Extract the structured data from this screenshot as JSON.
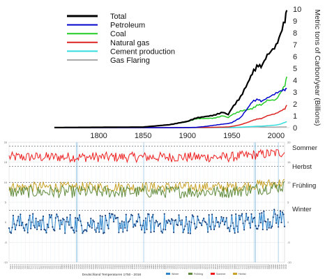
{
  "chart_data": [
    {
      "type": "line",
      "xlabel": "",
      "ylabel": "Metric tons of Carbon/year (Billions)",
      "xlim": [
        1750,
        2015
      ],
      "ylim": [
        0,
        10
      ],
      "x_ticks": [
        "1800",
        "1850",
        "1900",
        "1950",
        "2000"
      ],
      "y_ticks": [
        "0",
        "1",
        "2",
        "3",
        "4",
        "5",
        "6",
        "7",
        "8",
        "9",
        "10"
      ],
      "legend_position": "top-left",
      "grid": false,
      "x": [
        1750,
        1800,
        1850,
        1880,
        1900,
        1910,
        1920,
        1930,
        1940,
        1946,
        1950,
        1960,
        1970,
        1973,
        1980,
        1983,
        1990,
        2000,
        2005,
        2010,
        2012
      ],
      "series": [
        {
          "name": "Total",
          "color": "#000000",
          "values": [
            0.01,
            0.03,
            0.05,
            0.25,
            0.53,
            0.82,
            0.93,
            1.05,
            1.3,
            1.1,
            1.63,
            2.6,
            4.05,
            4.6,
            5.3,
            5.1,
            6.1,
            6.9,
            7.9,
            9.1,
            9.9
          ]
        },
        {
          "name": "Petroleum",
          "color": "#0000cc",
          "values": [
            0,
            0,
            0,
            0,
            0.01,
            0.03,
            0.1,
            0.2,
            0.3,
            0.35,
            0.42,
            0.85,
            1.85,
            2.2,
            2.4,
            2.2,
            2.5,
            2.9,
            3.1,
            3.2,
            3.3
          ]
        },
        {
          "name": "Coal",
          "color": "#22cc22",
          "values": [
            0.01,
            0.03,
            0.05,
            0.25,
            0.5,
            0.75,
            0.78,
            0.8,
            1.0,
            0.85,
            1.08,
            1.4,
            1.55,
            1.6,
            1.95,
            1.9,
            2.3,
            2.35,
            2.95,
            3.6,
            4.3
          ]
        },
        {
          "name": "Natural gas",
          "color": "#dd2222",
          "values": [
            0,
            0,
            0,
            0,
            0,
            0.01,
            0.02,
            0.03,
            0.05,
            0.06,
            0.1,
            0.25,
            0.5,
            0.6,
            0.75,
            0.75,
            1.0,
            1.2,
            1.4,
            1.6,
            1.9
          ]
        },
        {
          "name": "Cement production",
          "color": "#33dddd",
          "values": [
            0,
            0,
            0,
            0,
            0,
            0,
            0,
            0.01,
            0.02,
            0.02,
            0.02,
            0.04,
            0.08,
            0.09,
            0.12,
            0.12,
            0.16,
            0.22,
            0.3,
            0.45,
            0.5
          ]
        },
        {
          "name": "Gas Flaring",
          "color": "#aaaaaa",
          "values": [
            0,
            0,
            0,
            0,
            0,
            0,
            0,
            0,
            0,
            0,
            0,
            0.02,
            0.06,
            0.08,
            0.07,
            0.05,
            0.05,
            0.05,
            0.06,
            0.06,
            0.07
          ]
        }
      ]
    },
    {
      "type": "line",
      "title": "Deutschland Temperaturen 1750 - 2016",
      "xlim": [
        1750,
        2016
      ],
      "ylim": [
        -10,
        20
      ],
      "y_ticks": [
        "20",
        "15",
        "10",
        "5",
        "0",
        "-5",
        "-10"
      ],
      "right_y_ticks": [
        "20",
        "15",
        "10",
        "5",
        "0",
        "-5",
        "-10"
      ],
      "legend_position": "bottom-center",
      "legend_entries": [
        "Winter",
        "Frühling",
        "Sommer",
        "Herbst"
      ],
      "series_labels": [
        "Sommer",
        "Herbst",
        "Frühling",
        "Winter"
      ],
      "dashed_reference_lines": [
        19,
        14,
        10,
        3
      ],
      "vertical_reference_lines": [
        1815,
        1816,
        1880,
        1987,
        1988,
        2010
      ],
      "x_start": 1750,
      "x_end": 2016,
      "x_label_step": 2,
      "series": [
        {
          "name": "Sommer",
          "color": "#ee1c1c",
          "mean": 16.3,
          "amplitude": 0.9,
          "trend": 1.2
        },
        {
          "name": "Herbst",
          "color": "#c9a227",
          "mean": 8.8,
          "amplitude": 0.9,
          "trend": 1.1
        },
        {
          "name": "Frühling",
          "color": "#5e8a3a",
          "mean": 7.6,
          "amplitude": 1.1,
          "trend": 1.4
        },
        {
          "name": "Winter",
          "color": "#2f86cc",
          "mean": -0.3,
          "amplitude": 1.8,
          "trend": 1.4
        }
      ]
    }
  ]
}
